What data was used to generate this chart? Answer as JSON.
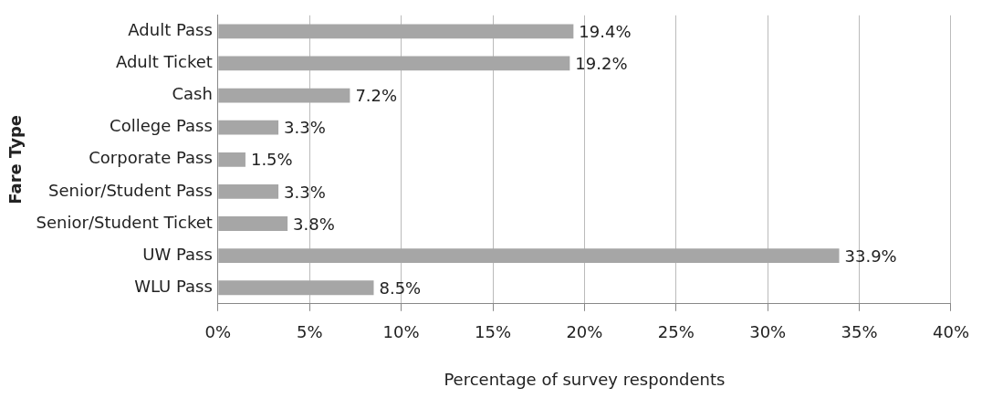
{
  "chart_data": {
    "type": "bar",
    "orientation": "horizontal",
    "xlabel": "Percentage of survey respondents",
    "ylabel": "Fare Type",
    "categories": [
      "Adult Pass",
      "Adult Ticket",
      "Cash",
      "College Pass",
      "Corporate Pass",
      "Senior/Student Pass",
      "Senior/Student Ticket",
      "UW Pass",
      "WLU Pass"
    ],
    "values": [
      19.4,
      19.2,
      7.2,
      3.3,
      1.5,
      3.3,
      3.8,
      33.9,
      8.5
    ],
    "color": "#a6a6a6",
    "value_labels": [
      "19.4%",
      "19.2%",
      "7.2%",
      "3.3%",
      "1.5%",
      "3.3%",
      "3.8%",
      "33.9%",
      "8.5%"
    ],
    "xlim": [
      0,
      40
    ],
    "xticks": [
      {
        "value": 0,
        "label": "0%"
      },
      {
        "value": 5,
        "label": "5%"
      },
      {
        "value": 10,
        "label": "10%"
      },
      {
        "value": 15,
        "label": "15%"
      },
      {
        "value": 20,
        "label": "20%"
      },
      {
        "value": 25,
        "label": "25%"
      },
      {
        "value": 30,
        "label": "30%"
      },
      {
        "value": 35,
        "label": "35%"
      },
      {
        "value": 40,
        "label": "40%"
      }
    ],
    "grid": "x",
    "legend": false
  }
}
